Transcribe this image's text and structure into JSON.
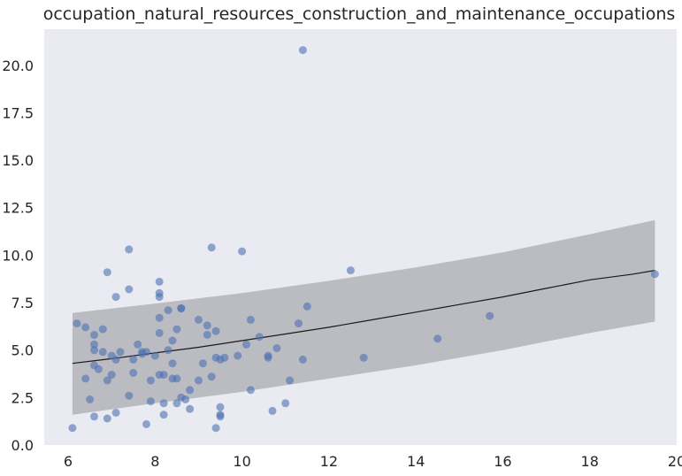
{
  "chart_data": {
    "type": "scatter",
    "title": "occupation_natural_resources_construction_and_maintenance_occupations",
    "xlabel": "",
    "ylabel": "",
    "xlim": [
      5.45,
      20.0
    ],
    "ylim": [
      0.0,
      21.9
    ],
    "x_ticks": [
      6,
      8,
      10,
      12,
      14,
      16,
      18,
      20
    ],
    "y_ticks": [
      0.0,
      2.5,
      5.0,
      7.5,
      10.0,
      12.5,
      15.0,
      17.5,
      20.0
    ],
    "x_tick_labels": [
      "6",
      "8",
      "10",
      "12",
      "14",
      "16",
      "18",
      "20"
    ],
    "y_tick_labels": [
      "0.0",
      "2.5",
      "5.0",
      "7.5",
      "10.0",
      "12.5",
      "15.0",
      "17.5",
      "20.0"
    ],
    "grid": false,
    "legend": "none",
    "colors": {
      "background": "#eaeaf2",
      "points": "#4c72b0",
      "band": "#a9a9ae",
      "fit_line": "#1a1a1a"
    },
    "points": [
      {
        "x": 6.1,
        "y": 0.9
      },
      {
        "x": 6.2,
        "y": 6.4
      },
      {
        "x": 6.4,
        "y": 6.2
      },
      {
        "x": 6.4,
        "y": 3.5
      },
      {
        "x": 6.5,
        "y": 2.4
      },
      {
        "x": 6.6,
        "y": 5.8
      },
      {
        "x": 6.6,
        "y": 5.3
      },
      {
        "x": 6.6,
        "y": 5.0
      },
      {
        "x": 6.6,
        "y": 4.2
      },
      {
        "x": 6.6,
        "y": 1.5
      },
      {
        "x": 6.7,
        "y": 4.0
      },
      {
        "x": 6.8,
        "y": 6.1
      },
      {
        "x": 6.8,
        "y": 4.9
      },
      {
        "x": 6.9,
        "y": 9.1
      },
      {
        "x": 6.9,
        "y": 3.4
      },
      {
        "x": 6.9,
        "y": 1.4
      },
      {
        "x": 7.0,
        "y": 4.7
      },
      {
        "x": 7.0,
        "y": 3.7
      },
      {
        "x": 7.1,
        "y": 7.8
      },
      {
        "x": 7.1,
        "y": 4.5
      },
      {
        "x": 7.1,
        "y": 1.7
      },
      {
        "x": 7.2,
        "y": 4.9
      },
      {
        "x": 7.4,
        "y": 10.3
      },
      {
        "x": 7.4,
        "y": 8.2
      },
      {
        "x": 7.4,
        "y": 2.6
      },
      {
        "x": 7.5,
        "y": 4.5
      },
      {
        "x": 7.5,
        "y": 3.8
      },
      {
        "x": 7.6,
        "y": 5.3
      },
      {
        "x": 7.7,
        "y": 4.9
      },
      {
        "x": 7.7,
        "y": 4.8
      },
      {
        "x": 7.8,
        "y": 4.9
      },
      {
        "x": 7.8,
        "y": 1.1
      },
      {
        "x": 7.9,
        "y": 3.4
      },
      {
        "x": 7.9,
        "y": 2.3
      },
      {
        "x": 8.0,
        "y": 4.7
      },
      {
        "x": 8.1,
        "y": 8.6
      },
      {
        "x": 8.1,
        "y": 8.0
      },
      {
        "x": 8.1,
        "y": 7.8
      },
      {
        "x": 8.1,
        "y": 6.7
      },
      {
        "x": 8.1,
        "y": 5.9
      },
      {
        "x": 8.1,
        "y": 3.7
      },
      {
        "x": 8.2,
        "y": 3.7
      },
      {
        "x": 8.2,
        "y": 2.2
      },
      {
        "x": 8.2,
        "y": 1.6
      },
      {
        "x": 8.3,
        "y": 7.1
      },
      {
        "x": 8.3,
        "y": 5.0
      },
      {
        "x": 8.4,
        "y": 5.5
      },
      {
        "x": 8.4,
        "y": 4.3
      },
      {
        "x": 8.4,
        "y": 3.5
      },
      {
        "x": 8.5,
        "y": 6.1
      },
      {
        "x": 8.5,
        "y": 3.5
      },
      {
        "x": 8.5,
        "y": 2.2
      },
      {
        "x": 8.6,
        "y": 7.2
      },
      {
        "x": 8.6,
        "y": 7.2
      },
      {
        "x": 8.6,
        "y": 2.5
      },
      {
        "x": 8.7,
        "y": 2.4
      },
      {
        "x": 8.8,
        "y": 2.9
      },
      {
        "x": 8.8,
        "y": 1.9
      },
      {
        "x": 9.0,
        "y": 6.6
      },
      {
        "x": 9.0,
        "y": 3.4
      },
      {
        "x": 9.1,
        "y": 4.3
      },
      {
        "x": 9.2,
        "y": 6.3
      },
      {
        "x": 9.2,
        "y": 5.8
      },
      {
        "x": 9.3,
        "y": 10.4
      },
      {
        "x": 9.3,
        "y": 3.6
      },
      {
        "x": 9.4,
        "y": 6.0
      },
      {
        "x": 9.4,
        "y": 4.6
      },
      {
        "x": 9.4,
        "y": 0.9
      },
      {
        "x": 9.5,
        "y": 4.5
      },
      {
        "x": 9.5,
        "y": 2.0
      },
      {
        "x": 9.5,
        "y": 1.6
      },
      {
        "x": 9.5,
        "y": 1.5
      },
      {
        "x": 9.6,
        "y": 4.6
      },
      {
        "x": 9.9,
        "y": 4.7
      },
      {
        "x": 10.0,
        "y": 10.2
      },
      {
        "x": 10.1,
        "y": 5.3
      },
      {
        "x": 10.2,
        "y": 6.6
      },
      {
        "x": 10.2,
        "y": 2.9
      },
      {
        "x": 10.4,
        "y": 5.7
      },
      {
        "x": 10.6,
        "y": 4.7
      },
      {
        "x": 10.6,
        "y": 4.6
      },
      {
        "x": 10.7,
        "y": 1.8
      },
      {
        "x": 10.8,
        "y": 5.1
      },
      {
        "x": 11.0,
        "y": 2.2
      },
      {
        "x": 11.1,
        "y": 3.4
      },
      {
        "x": 11.3,
        "y": 6.4
      },
      {
        "x": 11.4,
        "y": 20.8
      },
      {
        "x": 11.4,
        "y": 4.5
      },
      {
        "x": 11.5,
        "y": 7.3
      },
      {
        "x": 12.5,
        "y": 9.2
      },
      {
        "x": 12.8,
        "y": 4.6
      },
      {
        "x": 14.5,
        "y": 5.6
      },
      {
        "x": 15.7,
        "y": 6.8
      },
      {
        "x": 19.5,
        "y": 9.0
      }
    ],
    "fit_line": {
      "x": [
        6.1,
        7.0,
        8.0,
        9.0,
        10.0,
        11.0,
        12.0,
        13.0,
        14.0,
        15.0,
        16.0,
        17.0,
        18.0,
        19.0,
        19.5
      ],
      "y": [
        4.3,
        4.55,
        4.85,
        5.15,
        5.5,
        5.85,
        6.2,
        6.6,
        7.0,
        7.4,
        7.8,
        8.25,
        8.7,
        9.0,
        9.2
      ]
    },
    "band": {
      "x": [
        6.1,
        8.0,
        10.0,
        12.0,
        14.0,
        16.0,
        18.0,
        19.5
      ],
      "lower": [
        1.6,
        2.2,
        2.8,
        3.5,
        4.2,
        5.0,
        5.9,
        6.5
      ],
      "upper": [
        6.95,
        7.45,
        8.0,
        8.65,
        9.35,
        10.15,
        11.1,
        11.85
      ]
    }
  }
}
